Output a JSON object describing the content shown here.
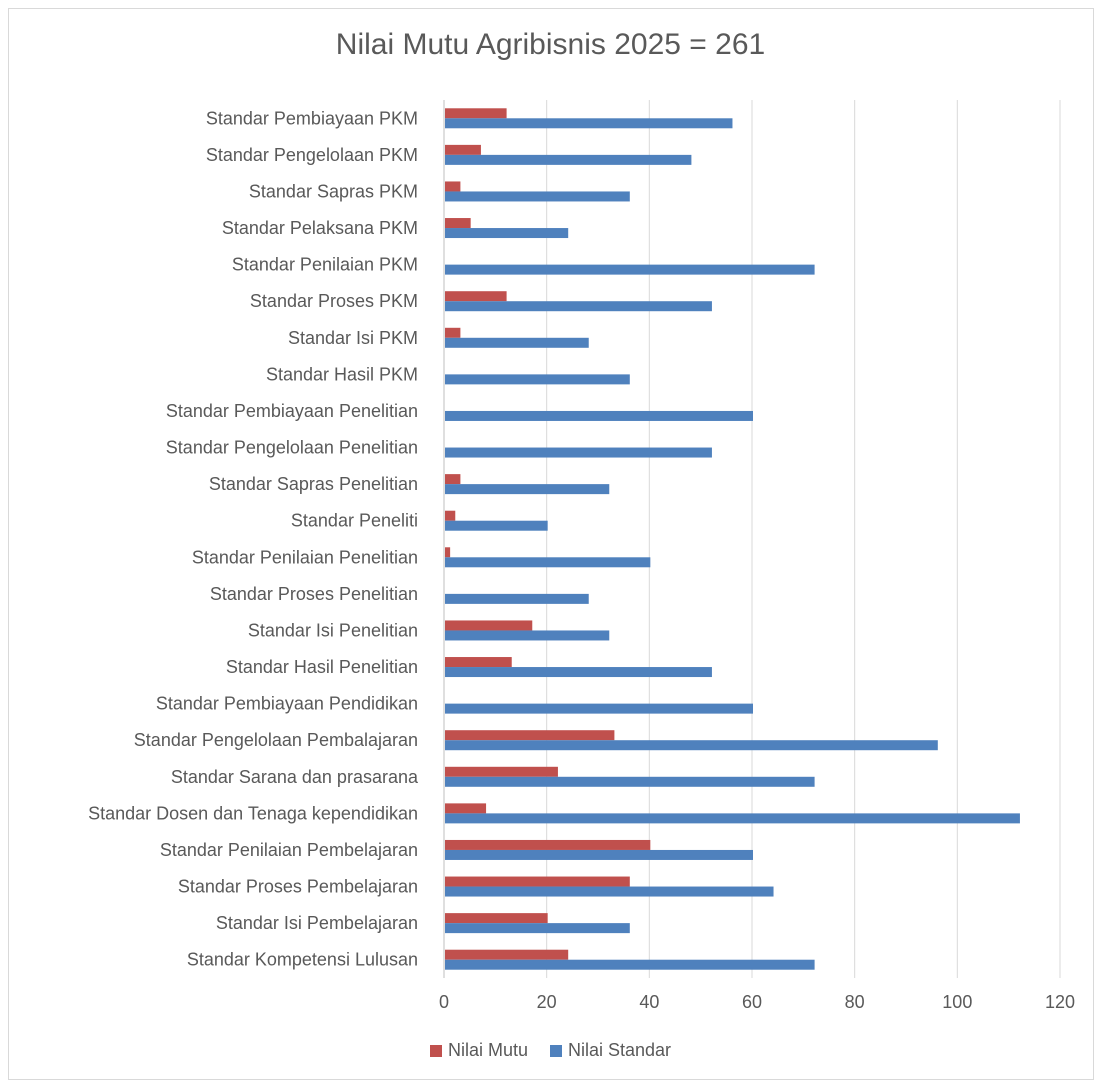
{
  "chart_data": {
    "type": "bar",
    "orientation": "horizontal",
    "title": "Nilai Mutu Agribisnis 2025 = 261",
    "xlabel": "",
    "ylabel": "",
    "xlim": [
      0,
      120
    ],
    "x_ticks": [
      "0",
      "20",
      "40",
      "60",
      "80",
      "100",
      "120"
    ],
    "grid": "vertical",
    "legend_position": "bottom",
    "categories": [
      "Standar Pembiayaan PKM",
      "Standar Pengelolaan PKM",
      "Standar Sapras PKM",
      "Standar Pelaksana PKM",
      "Standar Penilaian PKM",
      "Standar Proses PKM",
      "Standar Isi PKM",
      "Standar Hasil PKM",
      "Standar Pembiayaan Penelitian",
      "Standar Pengelolaan Penelitian",
      "Standar Sapras Penelitian",
      "Standar Peneliti",
      "Standar Penilaian Penelitian",
      "Standar Proses Penelitian",
      "Standar Isi Penelitian",
      "Standar Hasil Penelitian",
      "Standar Pembiayaan Pendidikan",
      "Standar Pengelolaan Pembalajaran",
      "Standar Sarana dan prasarana",
      "Standar Dosen dan Tenaga kependidikan",
      "Standar Penilaian Pembelajaran",
      "Standar Proses Pembelajaran",
      "Standar Isi Pembelajaran",
      "Standar Kompetensi Lulusan"
    ],
    "series": [
      {
        "name": "Nilai Mutu",
        "color": "#c0504d",
        "values": [
          12,
          7,
          3,
          5,
          0,
          12,
          3,
          0,
          0,
          0,
          3,
          2,
          1,
          0,
          17,
          13,
          0,
          33,
          22,
          8,
          40,
          36,
          20,
          24
        ]
      },
      {
        "name": "Nilai Standar",
        "color": "#4f81bd",
        "values": [
          56,
          48,
          36,
          24,
          72,
          52,
          28,
          36,
          60,
          52,
          32,
          20,
          40,
          28,
          32,
          52,
          60,
          96,
          72,
          112,
          60,
          64,
          36,
          72
        ]
      }
    ]
  },
  "colors": {
    "grid": "#d9d9d9",
    "axis": "#bfbfbf",
    "text": "#595959",
    "border": "#d9d9d9"
  }
}
